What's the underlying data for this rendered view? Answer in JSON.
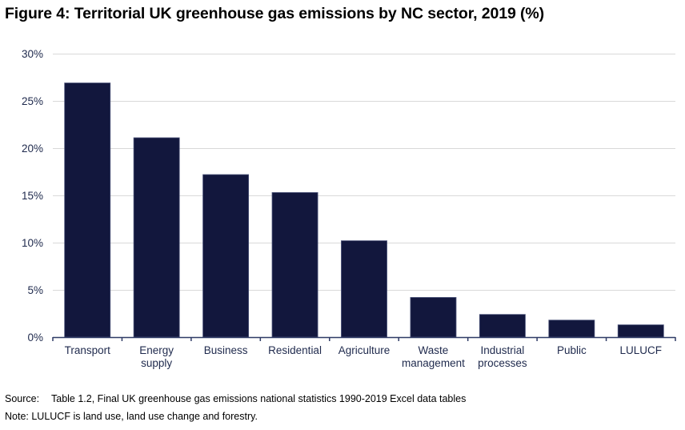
{
  "chart_data": {
    "type": "bar",
    "title": "Figure 4: Territorial UK greenhouse gas emissions by NC sector, 2019 (%)",
    "xlabel": "",
    "ylabel": "",
    "categories": [
      [
        "Transport"
      ],
      [
        "Energy",
        "supply"
      ],
      [
        "Business"
      ],
      [
        "Residential"
      ],
      [
        "Agriculture"
      ],
      [
        "Waste",
        "management"
      ],
      [
        "Industrial",
        "processes"
      ],
      [
        "Public"
      ],
      [
        "LULUCF"
      ]
    ],
    "category_names": [
      "Transport",
      "Energy supply",
      "Business",
      "Residential",
      "Agriculture",
      "Waste management",
      "Industrial processes",
      "Public",
      "LULUCF"
    ],
    "values": [
      26.9,
      21.1,
      17.2,
      15.3,
      10.2,
      4.2,
      2.4,
      1.8,
      1.3
    ],
    "unit": "%",
    "ylim": [
      0,
      30
    ],
    "yticks": [
      0,
      5,
      10,
      15,
      20,
      25,
      30
    ],
    "ytick_labels": [
      "0%",
      "5%",
      "10%",
      "15%",
      "20%",
      "25%",
      "30%"
    ],
    "grid": "horizontal",
    "legend": "none",
    "colors": {
      "bar": "#12173d",
      "bar_edge": "#4a5278",
      "grid": "#d9d9d9",
      "axis": "#2f3b66",
      "tick_text": "#1f2a4d"
    }
  },
  "footer": {
    "source_label": "Source:",
    "source_text": "Table 1.2, Final UK greenhouse gas emissions national statistics 1990-2019 Excel data tables",
    "note": "Note: LULUCF is land use, land use change and forestry."
  }
}
